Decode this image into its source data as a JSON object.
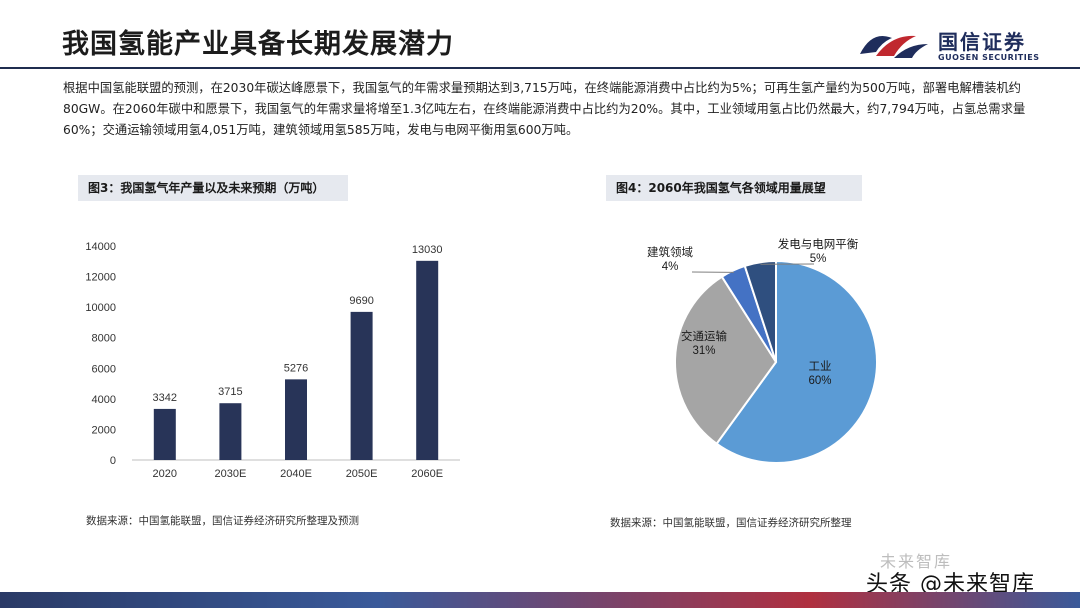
{
  "header": {
    "title": "我国氢能产业具备长期发展潜力",
    "logo_cn": "国信证券",
    "logo_en": "GUOSEN SECURITIES"
  },
  "intro": "根据中国氢能联盟的预测，在2030年碳达峰愿景下，我国氢气的年需求量预期达到3,715万吨，在终端能源消费中占比约为5%；可再生氢产量约为500万吨，部署电解槽装机约80GW。在2060年碳中和愿景下，我国氢气的年需求量将增至1.3亿吨左右，在终端能源消费中占比约为20%。其中，工业领域用氢占比仍然最大，约7,794万吨，占氢总需求量60%；交通运输领域用氢4,051万吨，建筑领域用氢585万吨，发电与电网平衡用氢600万吨。",
  "figures": {
    "fig3": {
      "title": "图3：我国氢气年产量以及未来预期（万吨）",
      "source": "数据来源：中国氢能联盟，国信证券经济研究所整理及预测"
    },
    "fig4": {
      "title": "图4：2060年我国氢气各领域用量展望",
      "source": "数据来源：中国氢能联盟，国信证券经济研究所整理"
    }
  },
  "chart_data": [
    {
      "type": "bar",
      "title": "图3：我国氢气年产量以及未来预期（万吨）",
      "categories": [
        "2020",
        "2030E",
        "2040E",
        "2050E",
        "2060E"
      ],
      "values": [
        3342,
        3715,
        5276,
        9690,
        13030
      ],
      "yticks": [
        0,
        2000,
        4000,
        6000,
        8000,
        10000,
        12000,
        14000
      ],
      "ylim": [
        0,
        14000
      ],
      "color": "#283458"
    },
    {
      "type": "pie",
      "title": "图4：2060年我国氢气各领域用量展望",
      "slices": [
        {
          "label": "工业",
          "value": 60,
          "display": "60%",
          "color": "#5b9bd5"
        },
        {
          "label": "交通运输",
          "value": 31,
          "display": "31%",
          "color": "#a5a5a5"
        },
        {
          "label": "建筑领域",
          "value": 4,
          "display": "4%",
          "color": "#4472c4"
        },
        {
          "label": "发电与电网平衡",
          "value": 5,
          "display": "5%",
          "color": "#2f4f7f"
        }
      ]
    }
  ],
  "footer": {
    "watermark": "未来智库",
    "brand": "头条 @未来智库"
  }
}
